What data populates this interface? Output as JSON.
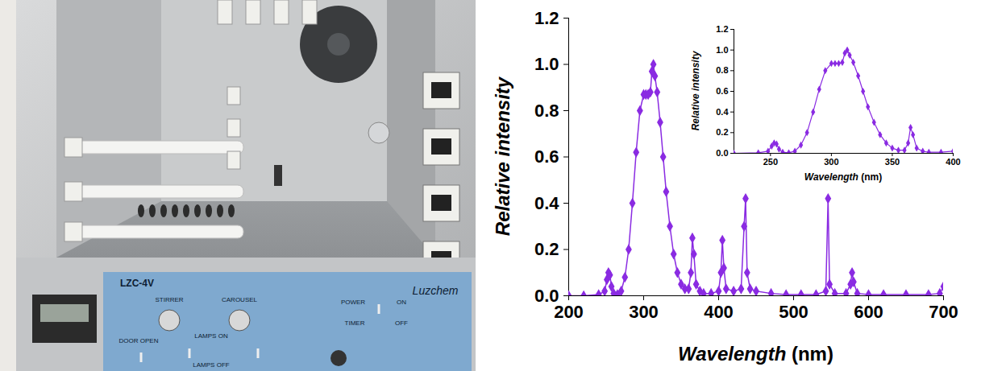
{
  "chart_data": [
    {
      "type": "line",
      "x_label": "Wavelength (nm)",
      "y_label": "Relative intensity",
      "color": "#8a2be2",
      "marker": "diamond",
      "line_style": "solid",
      "x": [
        200,
        220,
        240,
        248,
        251,
        253,
        255,
        257,
        260,
        265,
        270,
        275,
        280,
        285,
        290,
        295,
        300,
        303,
        306,
        309,
        311,
        313,
        315,
        318,
        322,
        326,
        330,
        335,
        340,
        345,
        350,
        355,
        360,
        363,
        365,
        367,
        370,
        375,
        380,
        390,
        400,
        403,
        405,
        407,
        410,
        420,
        430,
        434,
        436,
        438,
        442,
        450,
        470,
        490,
        510,
        530,
        543,
        546,
        548,
        555,
        570,
        576,
        578,
        580,
        585,
        600,
        620,
        650,
        680,
        695,
        700
      ],
      "values": [
        0.0,
        0.0,
        0.005,
        0.02,
        0.07,
        0.1,
        0.09,
        0.04,
        0.01,
        0.005,
        0.02,
        0.08,
        0.2,
        0.4,
        0.62,
        0.8,
        0.87,
        0.87,
        0.87,
        0.88,
        0.97,
        1.0,
        0.95,
        0.88,
        0.75,
        0.6,
        0.45,
        0.3,
        0.18,
        0.1,
        0.05,
        0.03,
        0.03,
        0.1,
        0.25,
        0.18,
        0.05,
        0.02,
        0.01,
        0.01,
        0.02,
        0.1,
        0.24,
        0.12,
        0.03,
        0.02,
        0.03,
        0.3,
        0.42,
        0.1,
        0.03,
        0.02,
        0.01,
        0.005,
        0.005,
        0.005,
        0.02,
        0.42,
        0.05,
        0.01,
        0.01,
        0.05,
        0.1,
        0.06,
        0.01,
        0.005,
        0.005,
        0.005,
        0.005,
        0.01,
        0.04
      ],
      "xlim": [
        200,
        700
      ],
      "xticks": [
        200,
        300,
        400,
        500,
        600,
        700
      ],
      "ylim": [
        0,
        1.2
      ],
      "yticks": [
        {
          "value": 0,
          "label": "0.0"
        },
        {
          "value": 0.2,
          "label": "0.2"
        },
        {
          "value": 0.4,
          "label": "0.4"
        },
        {
          "value": 0.6,
          "label": "0.6"
        },
        {
          "value": 0.8,
          "label": "0.8"
        },
        {
          "value": 1,
          "label": "1.0"
        },
        {
          "value": 1.2,
          "label": "1.2"
        }
      ]
    },
    {
      "type": "line",
      "x_label": "Wavelength (nm)",
      "y_label": "Relative intensity",
      "color": "#8a2be2",
      "marker": "diamond",
      "line_style": "solid",
      "x": [
        220,
        240,
        248,
        251,
        253,
        255,
        257,
        260,
        265,
        270,
        275,
        280,
        285,
        290,
        295,
        300,
        303,
        306,
        309,
        311,
        313,
        315,
        318,
        322,
        326,
        330,
        335,
        340,
        345,
        350,
        355,
        360,
        363,
        365,
        367,
        370,
        375,
        380,
        390,
        400
      ],
      "values": [
        0.0,
        0.005,
        0.02,
        0.07,
        0.1,
        0.09,
        0.04,
        0.01,
        0.005,
        0.02,
        0.08,
        0.2,
        0.4,
        0.62,
        0.8,
        0.87,
        0.87,
        0.87,
        0.88,
        0.97,
        1.0,
        0.95,
        0.88,
        0.75,
        0.6,
        0.45,
        0.3,
        0.18,
        0.1,
        0.05,
        0.03,
        0.03,
        0.1,
        0.25,
        0.18,
        0.05,
        0.02,
        0.01,
        0.01,
        0.02
      ],
      "xlim": [
        220,
        400
      ],
      "xticks": [
        250,
        300,
        350,
        400
      ],
      "ylim": [
        0,
        1.2
      ],
      "yticks": [
        {
          "value": 0,
          "label": "0.0"
        },
        {
          "value": 0.2,
          "label": "0.2"
        },
        {
          "value": 0.4,
          "label": "0.4"
        },
        {
          "value": 0.6,
          "label": "0.6"
        },
        {
          "value": 0.8,
          "label": "0.8"
        },
        {
          "value": 1,
          "label": "1.0"
        },
        {
          "value": 1.2,
          "label": "1.2"
        }
      ]
    }
  ],
  "photo": {
    "texts": [
      "LZC-4V",
      "STIRRER",
      "CAROUSEL",
      "Luzchem",
      "POWER",
      "ON",
      "OFF",
      "TIMER",
      "DOOR OPEN",
      "LAMPS ON",
      "LAMPS OFF"
    ]
  }
}
